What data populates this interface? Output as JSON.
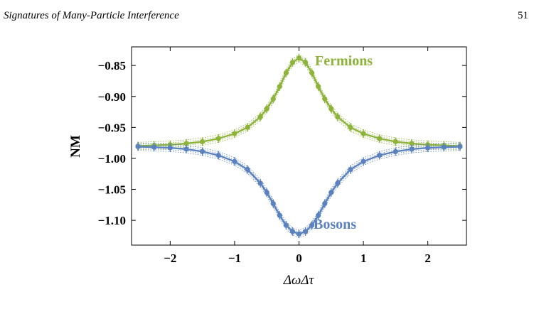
{
  "header": {
    "running_title": "Signatures of Many-Particle Interference",
    "page_number": "51"
  },
  "colors": {
    "fermions": "#8db33a",
    "bosons": "#5b82bf"
  },
  "chart_data": {
    "type": "line",
    "title": "",
    "xlabel": "ΔωΔτ",
    "ylabel": "NM",
    "xlim": [
      -2.6,
      2.6
    ],
    "ylim": [
      -1.14,
      -0.82
    ],
    "xticks": [
      -2,
      -1,
      0,
      1,
      2
    ],
    "xtick_labels": [
      "−2",
      "−1",
      "0",
      "1",
      "2"
    ],
    "yticks": [
      -0.85,
      -0.9,
      -0.95,
      -1.0,
      -1.05,
      -1.1
    ],
    "ytick_labels": [
      "−0.85",
      "−0.90",
      "−0.95",
      "−1.00",
      "−1.05",
      "−1.10"
    ],
    "grid": false,
    "x": [
      -2.5,
      -2.25,
      -2.0,
      -1.75,
      -1.5,
      -1.25,
      -1.0,
      -0.8,
      -0.6,
      -0.5,
      -0.4,
      -0.3,
      -0.2,
      -0.1,
      0.0,
      0.1,
      0.2,
      0.3,
      0.4,
      0.5,
      0.6,
      0.8,
      1.0,
      1.25,
      1.5,
      1.75,
      2.0,
      2.25,
      2.5
    ],
    "series": [
      {
        "name": "Fermions",
        "values": [
          -0.98,
          -0.979,
          -0.978,
          -0.976,
          -0.973,
          -0.968,
          -0.96,
          -0.95,
          -0.933,
          -0.92,
          -0.904,
          -0.884,
          -0.862,
          -0.845,
          -0.838,
          -0.845,
          -0.862,
          -0.884,
          -0.904,
          -0.92,
          -0.933,
          -0.95,
          -0.96,
          -0.968,
          -0.973,
          -0.976,
          -0.978,
          -0.979,
          -0.98
        ]
      },
      {
        "name": "Bosons",
        "values": [
          -0.981,
          -0.982,
          -0.983,
          -0.985,
          -0.989,
          -0.995,
          -1.005,
          -1.018,
          -1.04,
          -1.055,
          -1.073,
          -1.092,
          -1.108,
          -1.118,
          -1.122,
          -1.118,
          -1.108,
          -1.092,
          -1.073,
          -1.055,
          -1.04,
          -1.018,
          -1.005,
          -0.995,
          -0.989,
          -0.985,
          -0.983,
          -0.982,
          -0.981
        ]
      }
    ]
  }
}
